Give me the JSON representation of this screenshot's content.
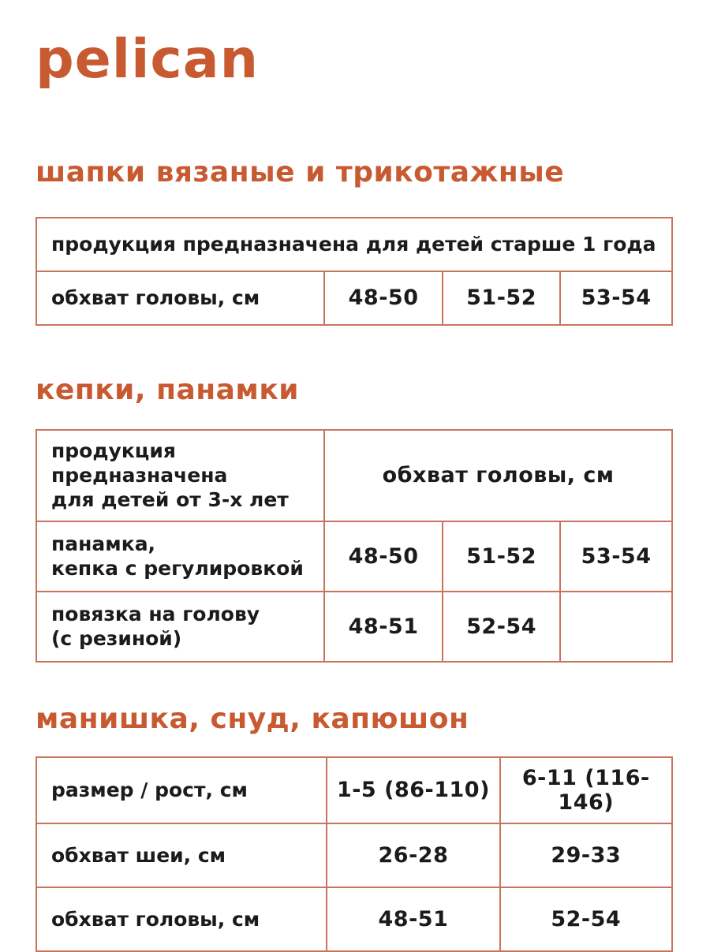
{
  "colors": {
    "accent": "#C85A31",
    "table_border": "#C7755A",
    "text": "#1B1B1B"
  },
  "brand": {
    "logo": "pelican"
  },
  "sections": [
    {
      "heading": "шапки вязаные и трикотажные",
      "table": {
        "columns": 4,
        "rows": [
          [
            {
              "text": "продукция предназначена для детей старше 1 года",
              "colspan": 4,
              "align": "left"
            }
          ],
          [
            {
              "text": "обхват головы, см",
              "align": "left"
            },
            {
              "text": "48-50"
            },
            {
              "text": "51-52"
            },
            {
              "text": "53-54"
            }
          ]
        ]
      }
    },
    {
      "heading": "кепки, панамки",
      "table": {
        "columns": 4,
        "rows": [
          [
            {
              "text": "продукция предназначена\nдля детей от 3-х лет",
              "align": "left"
            },
            {
              "text": "обхват головы, см",
              "colspan": 3
            }
          ],
          [
            {
              "text": "панамка,\nкепка с регулировкой",
              "align": "left"
            },
            {
              "text": "48-50"
            },
            {
              "text": "51-52"
            },
            {
              "text": "53-54"
            }
          ],
          [
            {
              "text": "повязка на голову\n(с резиной)",
              "align": "left"
            },
            {
              "text": "48-51"
            },
            {
              "text": "52-54"
            },
            {
              "text": ""
            }
          ]
        ]
      }
    },
    {
      "heading": "манишка, снуд, капюшон",
      "table": {
        "columns": 3,
        "rows": [
          [
            {
              "text": "размер / рост, см",
              "align": "left"
            },
            {
              "text": "1-5 (86-110)"
            },
            {
              "text": "6-11 (116-146)"
            }
          ],
          [
            {
              "text": "обхват шеи, см",
              "align": "left"
            },
            {
              "text": "26-28"
            },
            {
              "text": "29-33"
            }
          ],
          [
            {
              "text": "обхват головы, см",
              "align": "left"
            },
            {
              "text": "48-51"
            },
            {
              "text": "52-54"
            }
          ]
        ]
      }
    }
  ]
}
